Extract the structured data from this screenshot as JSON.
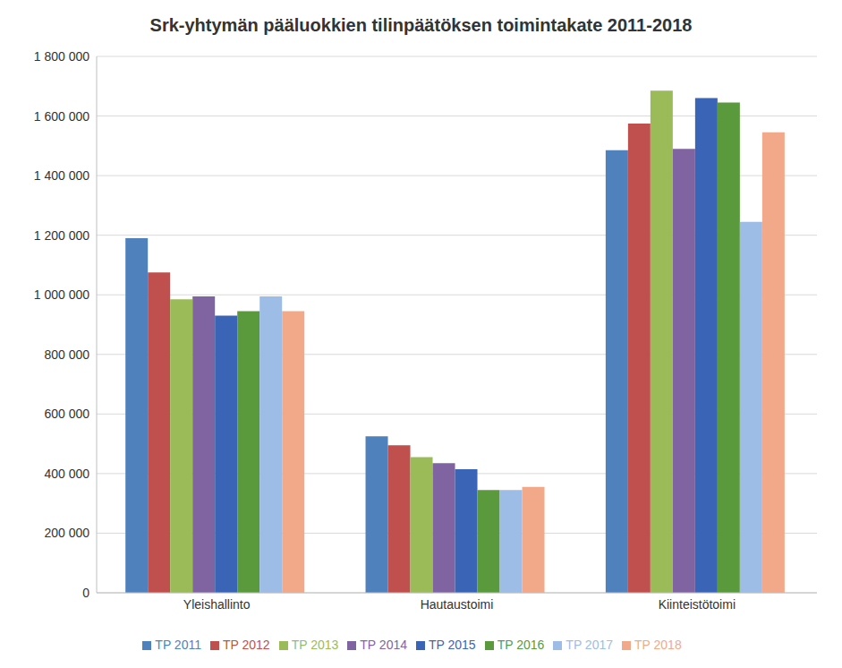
{
  "chart_data": {
    "type": "bar",
    "title": "Srk-yhtymän pääluokkien tilinpäätöksen toimintakate 2011-2018",
    "categories": [
      "Yleishallinto",
      "Hautaustoimi",
      "Kiinteistötoimi"
    ],
    "series": [
      {
        "name": "TP 2011",
        "color": "#4f81bd",
        "values": [
          1190000,
          525000,
          1485000
        ]
      },
      {
        "name": "TP 2012",
        "color": "#c0504d",
        "values": [
          1075000,
          495000,
          1575000
        ]
      },
      {
        "name": "TP 2013",
        "color": "#9bbb59",
        "values": [
          985000,
          455000,
          1685000
        ]
      },
      {
        "name": "TP 2014",
        "color": "#8064a2",
        "values": [
          995000,
          435000,
          1490000
        ]
      },
      {
        "name": "TP 2015",
        "color": "#3a64b5",
        "values": [
          930000,
          415000,
          1660000
        ]
      },
      {
        "name": "TP 2016",
        "color": "#5b9a3c",
        "values": [
          945000,
          345000,
          1645000
        ]
      },
      {
        "name": "TP 2017",
        "color": "#9dbde6",
        "values": [
          995000,
          345000,
          1245000
        ]
      },
      {
        "name": "TP 2018",
        "color": "#f2a98a",
        "values": [
          945000,
          355000,
          1545000
        ]
      }
    ],
    "ylim": [
      0,
      1800000
    ],
    "yticks": [
      0,
      {
        "value": 200000,
        "label": "200 000"
      },
      {
        "value": 400000,
        "label": "400 000"
      },
      {
        "value": 600000,
        "label": "600 000"
      },
      {
        "value": 800000,
        "label": "800 000"
      },
      {
        "value": 1000000,
        "label": "1 000 000"
      },
      {
        "value": 1200000,
        "label": "1 200 000"
      },
      {
        "value": 1400000,
        "label": "1 400 000"
      },
      {
        "value": 1600000,
        "label": "1 600 000"
      },
      {
        "value": 1800000,
        "label": "1 800 000"
      }
    ],
    "grid": true,
    "legend": "bottom"
  }
}
